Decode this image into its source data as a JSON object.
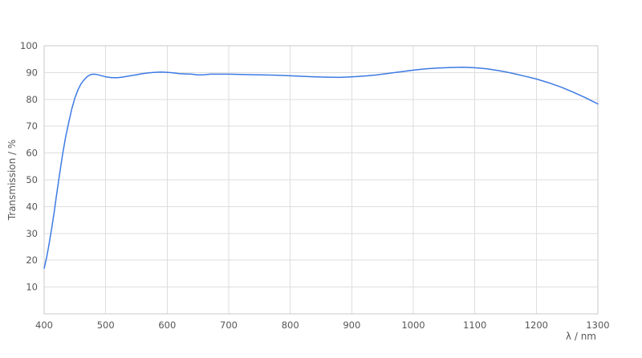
{
  "chart_data": {
    "type": "line",
    "title": "",
    "xlabel": "λ / nm",
    "ylabel": "Transmission / %",
    "xlim": [
      400,
      1300
    ],
    "ylim": [
      0,
      100
    ],
    "x_ticks": [
      400,
      500,
      600,
      700,
      800,
      900,
      1000,
      1100,
      1200,
      1300
    ],
    "y_ticks": [
      10,
      20,
      30,
      40,
      50,
      60,
      70,
      80,
      90,
      100
    ],
    "grid": true,
    "legend": "none",
    "colors": {
      "curve": "#3d7ae4",
      "gridline": "#dedede",
      "frame": "#c9c9c9",
      "tick_label": "#565656",
      "background": "#ffffff"
    },
    "series": [
      {
        "name": "Transmission",
        "color": "#3d7ae4",
        "points": [
          [
            400,
            17.0
          ],
          [
            404,
            21.0
          ],
          [
            408,
            26.0
          ],
          [
            412,
            31.5
          ],
          [
            416,
            37.5
          ],
          [
            420,
            44.0
          ],
          [
            425,
            52.0
          ],
          [
            430,
            59.5
          ],
          [
            435,
            66.0
          ],
          [
            440,
            71.5
          ],
          [
            445,
            76.5
          ],
          [
            450,
            80.5
          ],
          [
            455,
            83.6
          ],
          [
            460,
            85.8
          ],
          [
            465,
            87.3
          ],
          [
            470,
            88.5
          ],
          [
            475,
            89.2
          ],
          [
            480,
            89.4
          ],
          [
            485,
            89.3
          ],
          [
            490,
            89.0
          ],
          [
            495,
            88.7
          ],
          [
            500,
            88.4
          ],
          [
            510,
            88.1
          ],
          [
            520,
            88.1
          ],
          [
            530,
            88.4
          ],
          [
            540,
            88.8
          ],
          [
            550,
            89.2
          ],
          [
            560,
            89.6
          ],
          [
            570,
            89.9
          ],
          [
            580,
            90.1
          ],
          [
            590,
            90.2
          ],
          [
            600,
            90.1
          ],
          [
            610,
            89.9
          ],
          [
            620,
            89.6
          ],
          [
            630,
            89.5
          ],
          [
            640,
            89.4
          ],
          [
            650,
            89.1
          ],
          [
            660,
            89.2
          ],
          [
            670,
            89.4
          ],
          [
            680,
            89.4
          ],
          [
            700,
            89.4
          ],
          [
            720,
            89.3
          ],
          [
            740,
            89.2
          ],
          [
            760,
            89.1
          ],
          [
            780,
            89.0
          ],
          [
            800,
            88.8
          ],
          [
            820,
            88.6
          ],
          [
            840,
            88.4
          ],
          [
            860,
            88.3
          ],
          [
            880,
            88.2
          ],
          [
            900,
            88.4
          ],
          [
            920,
            88.7
          ],
          [
            940,
            89.1
          ],
          [
            960,
            89.7
          ],
          [
            980,
            90.3
          ],
          [
            1000,
            90.9
          ],
          [
            1020,
            91.4
          ],
          [
            1040,
            91.7
          ],
          [
            1060,
            91.9
          ],
          [
            1080,
            92.0
          ],
          [
            1100,
            91.8
          ],
          [
            1120,
            91.4
          ],
          [
            1140,
            90.7
          ],
          [
            1160,
            89.8
          ],
          [
            1180,
            88.7
          ],
          [
            1200,
            87.6
          ],
          [
            1220,
            86.2
          ],
          [
            1240,
            84.6
          ],
          [
            1260,
            82.7
          ],
          [
            1280,
            80.6
          ],
          [
            1300,
            78.3
          ]
        ]
      }
    ]
  }
}
